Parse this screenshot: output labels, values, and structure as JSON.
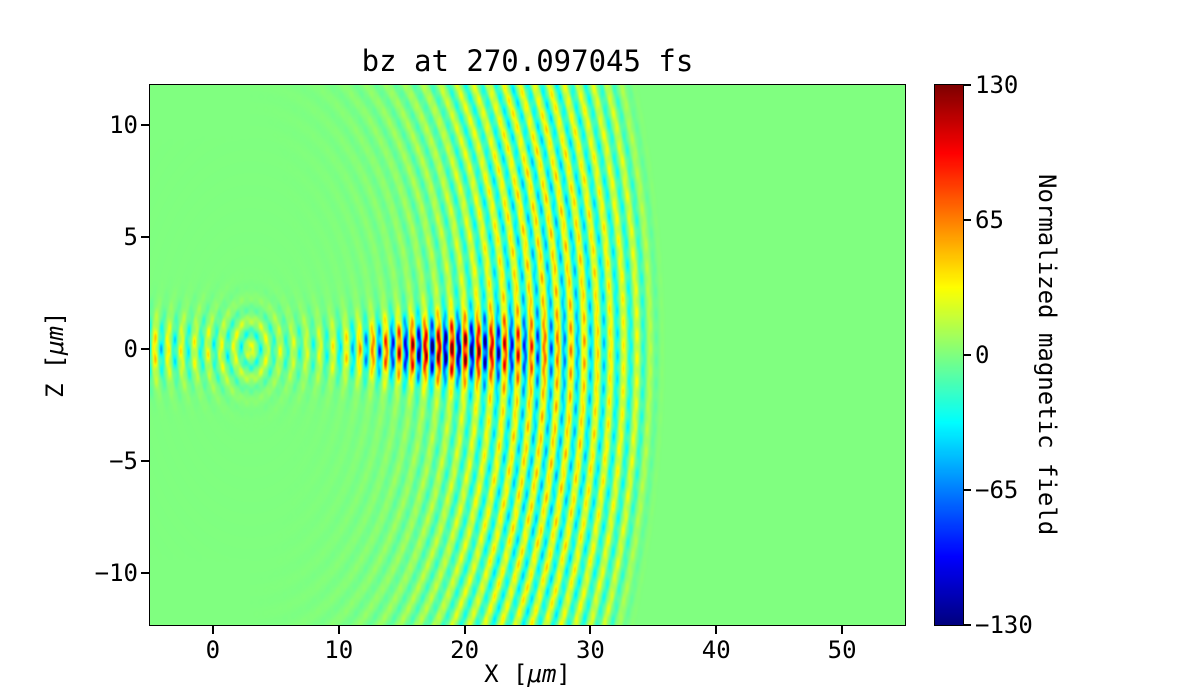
{
  "chart_data": {
    "type": "heatmap",
    "title": "bz at 270.097045 fs",
    "xlabel_parts": {
      "prefix": "X [",
      "unit": "μm",
      "suffix": "]"
    },
    "ylabel_parts": {
      "prefix": "Z [",
      "unit": "μm",
      "suffix": "]"
    },
    "xlim": [
      -5,
      55
    ],
    "ylim": [
      -12.3,
      11.8
    ],
    "xticks": [
      0,
      10,
      20,
      30,
      40,
      50
    ],
    "xticklabels": [
      "0",
      "10",
      "20",
      "30",
      "40",
      "50"
    ],
    "yticks": [
      10,
      5,
      0,
      -5,
      -10
    ],
    "yticklabels": [
      "10",
      "5",
      "0",
      "−5",
      "−10"
    ],
    "colormap": "jet",
    "clim": [
      -130,
      130
    ],
    "background_value": 0,
    "colorbar": {
      "label": "Normalized magnetic field",
      "ticks": [
        130,
        65,
        0,
        -65,
        -130
      ],
      "ticklabels": [
        "130",
        "65",
        "0",
        "−65",
        "−130"
      ]
    },
    "field_pattern": {
      "description": "Circular wakefield-like wavefronts radiating from near the origin; strong saturated red/blue oscillations along z=0 between x≈10 and x≈28 μm, weaker concentric yellow/cyan arcs out to radius ≈33 μm, faint speckle upstream along the axis toward x=-5.",
      "source_center_x_um": 3,
      "source_center_z_um": 0,
      "wavelength_um": 1.05,
      "max_radius_um": 33,
      "core": {
        "amplitude": 150,
        "z_halfwidth_um": 1.3,
        "r_peak_um": 15,
        "r_sigma_um": 7
      },
      "arcs": {
        "amplitude": 60,
        "theta_sigma_rad": 0.85,
        "r_peak_um": 24,
        "r_sigma_um": 9
      },
      "upstream": {
        "amplitude": 42,
        "z_halfwidth_um": 1.6,
        "x_center_um": 2,
        "x_sigma_um": 6
      }
    }
  }
}
